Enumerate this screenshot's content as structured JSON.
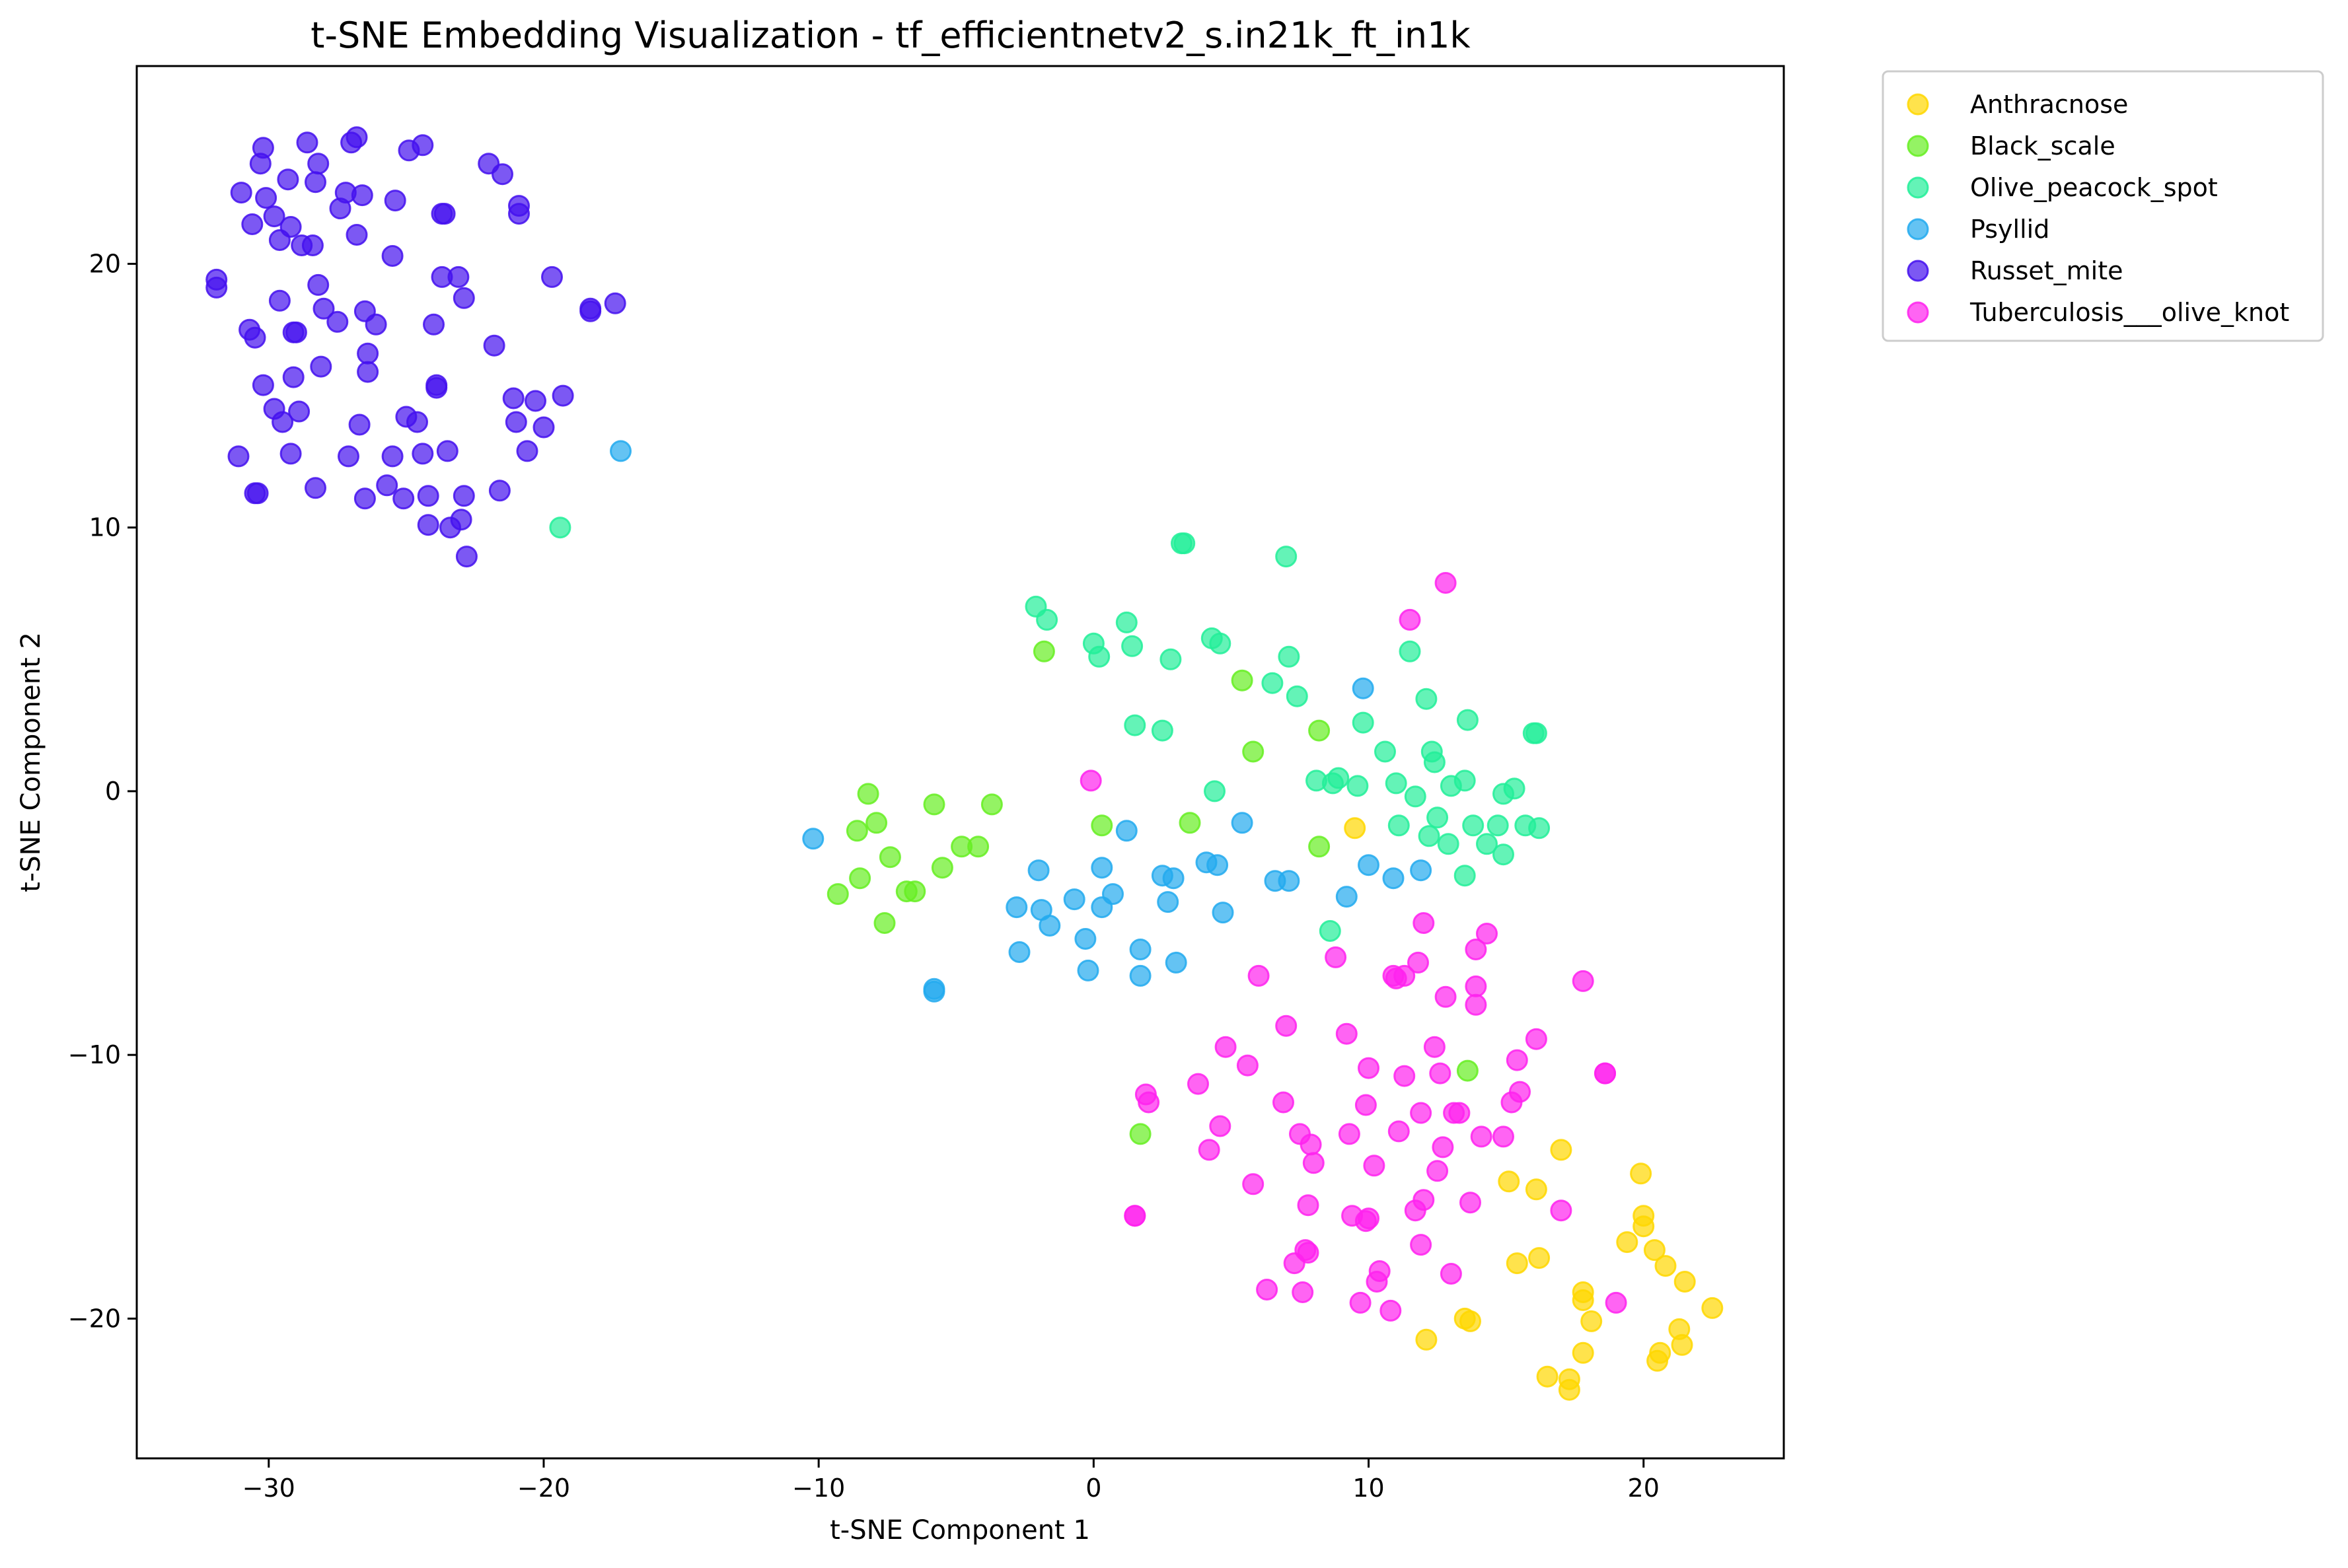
{
  "chart_data": {
    "type": "scatter",
    "title": "t-SNE Embedding Visualization - tf_efficientnetv2_s.in21k_ft_in1k",
    "xlabel": "t-SNE Component 1",
    "ylabel": "t-SNE Component 2",
    "xlim": [
      -34.8,
      25.1
    ],
    "ylim": [
      -25.3,
      27.5
    ],
    "xticks": [
      -30,
      -20,
      -10,
      0,
      10,
      20
    ],
    "yticks": [
      -20,
      -10,
      0,
      10,
      20
    ],
    "xtick_labels": [
      "−30",
      "−20",
      "−10",
      "0",
      "10",
      "20"
    ],
    "ytick_labels": [
      "−20",
      "−10",
      "0",
      "10",
      "20"
    ],
    "grid": false,
    "legend_position": "outside-top-right",
    "series": [
      {
        "name": "Anthracnose",
        "color": "#FFD700",
        "points": [
          [
            9.5,
            -1.4
          ],
          [
            12.1,
            -20.8
          ],
          [
            13.5,
            -20.0
          ],
          [
            13.7,
            -20.1
          ],
          [
            15.1,
            -14.8
          ],
          [
            15.4,
            -17.9
          ],
          [
            16.1,
            -15.1
          ],
          [
            16.2,
            -17.7
          ],
          [
            16.5,
            -22.2
          ],
          [
            17.0,
            -13.6
          ],
          [
            17.3,
            -22.3
          ],
          [
            17.3,
            -22.7
          ],
          [
            17.8,
            -19.0
          ],
          [
            17.8,
            -19.3
          ],
          [
            17.8,
            -21.3
          ],
          [
            18.1,
            -20.1
          ],
          [
            19.4,
            -17.1
          ],
          [
            19.9,
            -14.5
          ],
          [
            20.0,
            -16.5
          ],
          [
            20.0,
            -16.1
          ],
          [
            20.4,
            -17.4
          ],
          [
            20.5,
            -21.6
          ],
          [
            20.6,
            -21.3
          ],
          [
            20.8,
            -18.0
          ],
          [
            21.3,
            -20.4
          ],
          [
            21.4,
            -21.0
          ],
          [
            21.5,
            -18.6
          ],
          [
            22.5,
            -19.6
          ]
        ]
      },
      {
        "name": "Black_scale",
        "color": "#66EE22",
        "points": [
          [
            -9.3,
            -3.9
          ],
          [
            -8.6,
            -1.5
          ],
          [
            -8.5,
            -3.3
          ],
          [
            -8.2,
            -0.1
          ],
          [
            -7.9,
            -1.2
          ],
          [
            -7.6,
            -5.0
          ],
          [
            -7.4,
            -2.5
          ],
          [
            -6.8,
            -3.8
          ],
          [
            -6.5,
            -3.8
          ],
          [
            -5.8,
            -0.5
          ],
          [
            -5.5,
            -2.9
          ],
          [
            -4.8,
            -2.1
          ],
          [
            -4.2,
            -2.1
          ],
          [
            -3.7,
            -0.5
          ],
          [
            -1.8,
            5.3
          ],
          [
            0.3,
            -1.3
          ],
          [
            1.7,
            -13.0
          ],
          [
            3.5,
            -1.2
          ],
          [
            5.4,
            4.2
          ],
          [
            5.8,
            1.5
          ],
          [
            8.2,
            2.3
          ],
          [
            8.2,
            -2.1
          ],
          [
            13.6,
            -10.6
          ]
        ]
      },
      {
        "name": "Olive_peacock_spot",
        "color": "#22EE99",
        "points": [
          [
            -19.4,
            10.0
          ],
          [
            -2.1,
            7.0
          ],
          [
            -1.7,
            6.5
          ],
          [
            0.0,
            5.6
          ],
          [
            0.2,
            5.1
          ],
          [
            1.2,
            6.4
          ],
          [
            1.4,
            5.5
          ],
          [
            1.5,
            2.5
          ],
          [
            2.5,
            2.3
          ],
          [
            2.8,
            5.0
          ],
          [
            3.2,
            9.4
          ],
          [
            3.3,
            9.4
          ],
          [
            4.3,
            5.8
          ],
          [
            4.4,
            0.0
          ],
          [
            4.6,
            5.6
          ],
          [
            6.5,
            4.1
          ],
          [
            7.0,
            8.9
          ],
          [
            7.1,
            5.1
          ],
          [
            7.4,
            3.6
          ],
          [
            8.1,
            0.4
          ],
          [
            8.6,
            -5.3
          ],
          [
            8.7,
            0.3
          ],
          [
            8.9,
            0.5
          ],
          [
            9.6,
            0.2
          ],
          [
            9.8,
            2.6
          ],
          [
            10.6,
            1.5
          ],
          [
            11.0,
            0.3
          ],
          [
            11.1,
            -1.3
          ],
          [
            11.5,
            5.3
          ],
          [
            11.7,
            -0.2
          ],
          [
            12.1,
            3.5
          ],
          [
            12.2,
            -1.7
          ],
          [
            12.3,
            1.5
          ],
          [
            12.4,
            1.1
          ],
          [
            12.5,
            -1.0
          ],
          [
            12.9,
            -2.0
          ],
          [
            13.0,
            0.2
          ],
          [
            13.5,
            0.4
          ],
          [
            13.5,
            -3.2
          ],
          [
            13.6,
            2.7
          ],
          [
            13.8,
            -1.3
          ],
          [
            14.3,
            -2.0
          ],
          [
            14.7,
            -1.3
          ],
          [
            14.9,
            -0.1
          ],
          [
            14.9,
            -2.4
          ],
          [
            15.3,
            0.1
          ],
          [
            15.7,
            -1.3
          ],
          [
            16.0,
            2.2
          ],
          [
            16.1,
            2.2
          ],
          [
            16.2,
            -1.4
          ]
        ]
      },
      {
        "name": "Psyllid",
        "color": "#22AAEE",
        "points": [
          [
            -17.2,
            12.9
          ],
          [
            -10.2,
            -1.8
          ],
          [
            -5.8,
            -7.5
          ],
          [
            -5.8,
            -7.6
          ],
          [
            -2.8,
            -4.4
          ],
          [
            -2.7,
            -6.1
          ],
          [
            -2.0,
            -3.0
          ],
          [
            -1.9,
            -4.5
          ],
          [
            -1.6,
            -5.1
          ],
          [
            -0.7,
            -4.1
          ],
          [
            -0.3,
            -5.6
          ],
          [
            -0.2,
            -6.8
          ],
          [
            0.3,
            -4.4
          ],
          [
            0.3,
            -2.9
          ],
          [
            0.7,
            -3.9
          ],
          [
            1.2,
            -1.5
          ],
          [
            1.7,
            -7.0
          ],
          [
            1.7,
            -6.0
          ],
          [
            2.5,
            -3.2
          ],
          [
            2.7,
            -4.2
          ],
          [
            2.9,
            -3.3
          ],
          [
            3.0,
            -6.5
          ],
          [
            4.1,
            -2.7
          ],
          [
            4.5,
            -2.8
          ],
          [
            4.7,
            -4.6
          ],
          [
            5.4,
            -1.2
          ],
          [
            6.6,
            -3.4
          ],
          [
            7.1,
            -3.4
          ],
          [
            9.2,
            -4.0
          ],
          [
            9.8,
            3.9
          ],
          [
            10.0,
            -2.8
          ],
          [
            10.9,
            -3.3
          ],
          [
            11.9,
            -3.0
          ]
        ]
      },
      {
        "name": "Russet_mite",
        "color": "#4411EE",
        "points": [
          [
            -31.9,
            19.1
          ],
          [
            -31.9,
            19.4
          ],
          [
            -31.1,
            12.7
          ],
          [
            -31.0,
            22.7
          ],
          [
            -30.7,
            17.5
          ],
          [
            -30.6,
            21.5
          ],
          [
            -30.5,
            17.2
          ],
          [
            -30.5,
            11.3
          ],
          [
            -30.4,
            11.3
          ],
          [
            -30.3,
            23.8
          ],
          [
            -30.2,
            15.4
          ],
          [
            -30.2,
            24.4
          ],
          [
            -30.1,
            22.5
          ],
          [
            -29.8,
            21.8
          ],
          [
            -29.8,
            14.5
          ],
          [
            -29.6,
            18.6
          ],
          [
            -29.6,
            20.9
          ],
          [
            -29.5,
            14.0
          ],
          [
            -29.3,
            23.2
          ],
          [
            -29.2,
            12.8
          ],
          [
            -29.2,
            21.4
          ],
          [
            -29.1,
            17.4
          ],
          [
            -29.1,
            15.7
          ],
          [
            -29.0,
            17.4
          ],
          [
            -28.9,
            14.4
          ],
          [
            -28.8,
            20.7
          ],
          [
            -28.6,
            24.6
          ],
          [
            -28.4,
            20.7
          ],
          [
            -28.3,
            11.5
          ],
          [
            -28.3,
            23.1
          ],
          [
            -28.2,
            23.8
          ],
          [
            -28.2,
            19.2
          ],
          [
            -28.1,
            16.1
          ],
          [
            -28.0,
            18.3
          ],
          [
            -27.5,
            17.8
          ],
          [
            -27.4,
            22.1
          ],
          [
            -27.2,
            22.7
          ],
          [
            -27.1,
            12.7
          ],
          [
            -27.0,
            24.6
          ],
          [
            -26.8,
            24.8
          ],
          [
            -26.8,
            21.1
          ],
          [
            -26.7,
            13.9
          ],
          [
            -26.6,
            22.6
          ],
          [
            -26.5,
            11.1
          ],
          [
            -26.5,
            18.2
          ],
          [
            -26.4,
            15.9
          ],
          [
            -26.4,
            16.6
          ],
          [
            -26.1,
            17.7
          ],
          [
            -25.7,
            11.6
          ],
          [
            -25.5,
            20.3
          ],
          [
            -25.5,
            12.7
          ],
          [
            -25.4,
            22.4
          ],
          [
            -25.1,
            11.1
          ],
          [
            -25.0,
            14.2
          ],
          [
            -24.9,
            24.3
          ],
          [
            -24.6,
            14.0
          ],
          [
            -24.4,
            12.8
          ],
          [
            -24.4,
            24.5
          ],
          [
            -24.2,
            11.2
          ],
          [
            -24.2,
            10.1
          ],
          [
            -24.0,
            17.7
          ],
          [
            -23.9,
            15.3
          ],
          [
            -23.9,
            15.4
          ],
          [
            -23.7,
            21.9
          ],
          [
            -23.7,
            19.5
          ],
          [
            -23.6,
            21.9
          ],
          [
            -23.5,
            12.9
          ],
          [
            -23.4,
            10.0
          ],
          [
            -23.1,
            19.5
          ],
          [
            -23.0,
            10.3
          ],
          [
            -22.9,
            11.2
          ],
          [
            -22.9,
            18.7
          ],
          [
            -22.8,
            8.9
          ],
          [
            -22.0,
            23.8
          ],
          [
            -21.8,
            16.9
          ],
          [
            -21.6,
            11.4
          ],
          [
            -21.5,
            23.4
          ],
          [
            -21.1,
            14.9
          ],
          [
            -21.0,
            14.0
          ],
          [
            -20.9,
            22.2
          ],
          [
            -20.9,
            21.9
          ],
          [
            -20.6,
            12.9
          ],
          [
            -20.3,
            14.8
          ],
          [
            -20.0,
            13.8
          ],
          [
            -19.7,
            19.5
          ],
          [
            -19.3,
            15.0
          ],
          [
            -18.3,
            18.2
          ],
          [
            -18.3,
            18.3
          ],
          [
            -17.4,
            18.5
          ]
        ]
      },
      {
        "name": "Tuberculosis___olive_knot",
        "color": "#FF22EE",
        "points": [
          [
            -0.1,
            0.4
          ],
          [
            1.5,
            -16.1
          ],
          [
            1.5,
            -16.1
          ],
          [
            1.9,
            -11.5
          ],
          [
            2.0,
            -11.8
          ],
          [
            3.8,
            -11.1
          ],
          [
            4.2,
            -13.6
          ],
          [
            4.6,
            -12.7
          ],
          [
            4.8,
            -9.7
          ],
          [
            5.6,
            -10.4
          ],
          [
            5.8,
            -14.9
          ],
          [
            6.0,
            -7.0
          ],
          [
            6.3,
            -18.9
          ],
          [
            6.9,
            -11.8
          ],
          [
            7.0,
            -8.9
          ],
          [
            7.3,
            -17.9
          ],
          [
            7.5,
            -13.0
          ],
          [
            7.6,
            -19.0
          ],
          [
            7.7,
            -17.4
          ],
          [
            7.8,
            -17.5
          ],
          [
            7.8,
            -15.7
          ],
          [
            7.9,
            -13.4
          ],
          [
            8.0,
            -14.1
          ],
          [
            8.8,
            -6.3
          ],
          [
            9.2,
            -9.2
          ],
          [
            9.3,
            -13.0
          ],
          [
            9.4,
            -16.1
          ],
          [
            9.7,
            -19.4
          ],
          [
            9.9,
            -11.9
          ],
          [
            9.9,
            -16.3
          ],
          [
            10.0,
            -10.5
          ],
          [
            10.0,
            -16.2
          ],
          [
            10.2,
            -14.2
          ],
          [
            10.3,
            -18.6
          ],
          [
            10.4,
            -18.2
          ],
          [
            10.8,
            -19.7
          ],
          [
            10.9,
            -7.0
          ],
          [
            11.0,
            -7.1
          ],
          [
            11.1,
            -12.9
          ],
          [
            11.3,
            -10.8
          ],
          [
            11.3,
            -7.0
          ],
          [
            11.7,
            -15.9
          ],
          [
            11.8,
            -6.5
          ],
          [
            11.9,
            -12.2
          ],
          [
            11.9,
            -17.2
          ],
          [
            12.0,
            -15.5
          ],
          [
            12.0,
            -5.0
          ],
          [
            12.4,
            -9.7
          ],
          [
            12.5,
            -14.4
          ],
          [
            12.6,
            -10.7
          ],
          [
            12.7,
            -13.5
          ],
          [
            12.8,
            -7.8
          ],
          [
            13.0,
            -18.3
          ],
          [
            13.1,
            -12.2
          ],
          [
            13.3,
            -12.2
          ],
          [
            13.7,
            -15.6
          ],
          [
            13.9,
            -7.4
          ],
          [
            13.9,
            -8.1
          ],
          [
            13.9,
            -6.0
          ],
          [
            14.1,
            -13.1
          ],
          [
            14.3,
            -5.4
          ],
          [
            14.9,
            -13.1
          ],
          [
            15.2,
            -11.8
          ],
          [
            15.4,
            -10.2
          ],
          [
            15.5,
            -11.4
          ],
          [
            16.1,
            -9.4
          ],
          [
            17.0,
            -15.9
          ],
          [
            17.8,
            -7.2
          ],
          [
            18.6,
            -10.7
          ],
          [
            18.6,
            -10.7
          ],
          [
            19.0,
            -19.4
          ],
          [
            11.5,
            6.5
          ],
          [
            12.8,
            7.9
          ]
        ]
      }
    ]
  }
}
